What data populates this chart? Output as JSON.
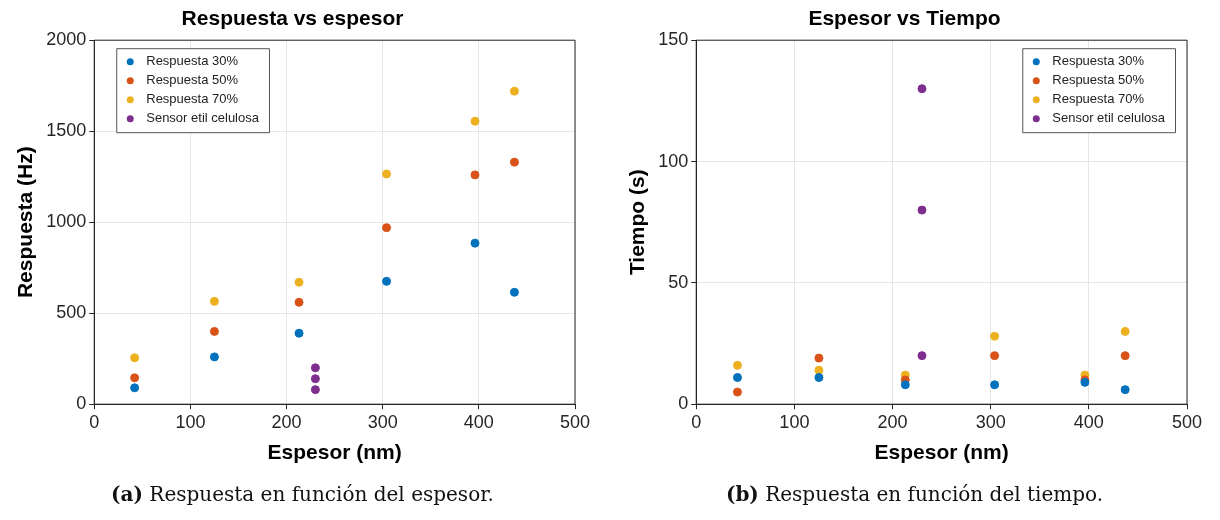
{
  "chart_data": [
    {
      "type": "scatter",
      "title": "Respuesta vs espesor",
      "xlabel": "Espesor (nm)",
      "ylabel": "Respuesta (Hz)",
      "xlim": [
        0,
        500
      ],
      "xticks": [
        0,
        100,
        200,
        300,
        400,
        500
      ],
      "ylim": [
        0,
        2000
      ],
      "yticks": [
        0,
        500,
        1000,
        1500,
        2000
      ],
      "grid": true,
      "legend": "top left",
      "marker": "circle",
      "annotations": [
        "(a) Respuesta en función del espesor."
      ],
      "series": [
        {
          "name": "Respuesta 30%",
          "color": "#0072bd",
          "x": [
            42,
            125,
            213,
            304,
            396,
            437
          ],
          "values": [
            90,
            260,
            390,
            675,
            885,
            615
          ]
        },
        {
          "name": "Respuesta 50%",
          "color": "#d95319",
          "x": [
            42,
            125,
            213,
            304,
            396,
            437
          ],
          "values": [
            145,
            400,
            560,
            970,
            1260,
            1330
          ]
        },
        {
          "name": "Respuesta 70%",
          "color": "#edb120",
          "x": [
            42,
            125,
            213,
            304,
            396,
            437
          ],
          "values": [
            255,
            565,
            670,
            1265,
            1555,
            1720
          ]
        },
        {
          "name": "Sensor etil celulosa",
          "color": "#7e2f8e",
          "x": [
            230,
            230,
            230
          ],
          "values": [
            80,
            140,
            200
          ]
        }
      ]
    },
    {
      "type": "scatter",
      "title": "Espesor vs Tiempo",
      "xlabel": "Espesor (nm)",
      "ylabel": "Tiempo (s)",
      "xlim": [
        0,
        500
      ],
      "xticks": [
        0,
        100,
        200,
        300,
        400,
        500
      ],
      "ylim": [
        0,
        150
      ],
      "yticks": [
        0,
        50,
        100,
        150
      ],
      "grid": true,
      "legend": "top right",
      "marker": "circle",
      "annotations": [
        "(b) Respuesta en función del tiempo."
      ],
      "series": [
        {
          "name": "Respuesta 30%",
          "color": "#0072bd",
          "x": [
            42,
            125,
            213,
            304,
            396,
            437
          ],
          "values": [
            11,
            11,
            8,
            8,
            9,
            6
          ]
        },
        {
          "name": "Respuesta 50%",
          "color": "#d95319",
          "x": [
            42,
            125,
            213,
            304,
            396,
            437
          ],
          "values": [
            5,
            19,
            10,
            20,
            10,
            20
          ]
        },
        {
          "name": "Respuesta 70%",
          "color": "#edb120",
          "x": [
            42,
            125,
            213,
            304,
            396,
            437
          ],
          "values": [
            16,
            14,
            12,
            28,
            12,
            30
          ]
        },
        {
          "name": "Sensor etil celulosa",
          "color": "#7e2f8e",
          "x": [
            230,
            230,
            230
          ],
          "values": [
            20,
            80,
            130
          ]
        }
      ]
    }
  ]
}
